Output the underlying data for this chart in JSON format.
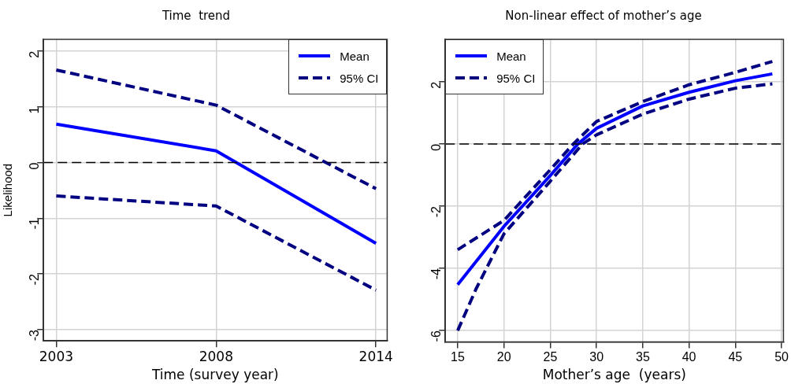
{
  "chart_data": [
    {
      "type": "line",
      "title": "Time  trend",
      "xlabel": "Time (survey year)",
      "ylabel": "Likelihood",
      "categories": [
        "2003",
        "2008",
        "2014"
      ],
      "ylim": [
        -3.2,
        2.21
      ],
      "yticks": [
        -3,
        -2,
        -1,
        0,
        1,
        2
      ],
      "grid": true,
      "legend": "top right",
      "ref_lines": [
        {
          "axis": "y",
          "value": 0,
          "color": "#000000",
          "line_style": "dashed"
        }
      ],
      "series": [
        {
          "name": "Mean",
          "color": "#0000ff",
          "line_style": "solid",
          "values": [
            0.69,
            0.21,
            -1.45
          ]
        },
        {
          "name": "95% CI",
          "color": "#000080",
          "line_style": "dashed",
          "values": [
            1.66,
            1.03,
            -0.47
          ]
        },
        {
          "color": "#000080",
          "line_style": "dashed",
          "values": [
            -0.6,
            -0.78,
            -2.29
          ]
        }
      ]
    },
    {
      "type": "line",
      "title": "Non-linear effect of mother’s age",
      "xlabel": "Mother’s age  (years)",
      "xlim": [
        13.66,
        50.2
      ],
      "xticks": [
        15,
        20,
        25,
        30,
        35,
        40,
        45,
        50
      ],
      "ylim": [
        -6.36,
        3.36
      ],
      "yticks": [
        -6,
        -4,
        -2,
        0,
        2
      ],
      "grid": true,
      "legend": "top left",
      "ref_lines": [
        {
          "axis": "y",
          "value": 0,
          "color": "#000000",
          "line_style": "dashed"
        }
      ],
      "series": [
        {
          "name": "Mean",
          "color": "#0000ff",
          "line_style": "solid",
          "x": [
            15,
            20,
            25,
            28,
            30,
            35,
            40,
            45,
            49
          ],
          "values": [
            -4.52,
            -2.65,
            -1.02,
            0,
            0.5,
            1.22,
            1.66,
            2.03,
            2.25
          ]
        },
        {
          "name": "95% CI",
          "color": "#000080",
          "line_style": "dashed",
          "x": [
            15,
            20,
            25,
            27.5,
            30,
            35,
            40,
            45,
            49
          ],
          "values": [
            -3.4,
            -2.46,
            -0.83,
            0,
            0.72,
            1.36,
            1.9,
            2.3,
            2.65
          ]
        },
        {
          "color": "#000080",
          "line_style": "dashed",
          "x": [
            15,
            17,
            20,
            25,
            28.5,
            30,
            35,
            40,
            45,
            49
          ],
          "values": [
            -6.0,
            -4.65,
            -2.89,
            -1.2,
            0,
            0.29,
            0.96,
            1.44,
            1.79,
            1.93
          ]
        }
      ]
    }
  ]
}
